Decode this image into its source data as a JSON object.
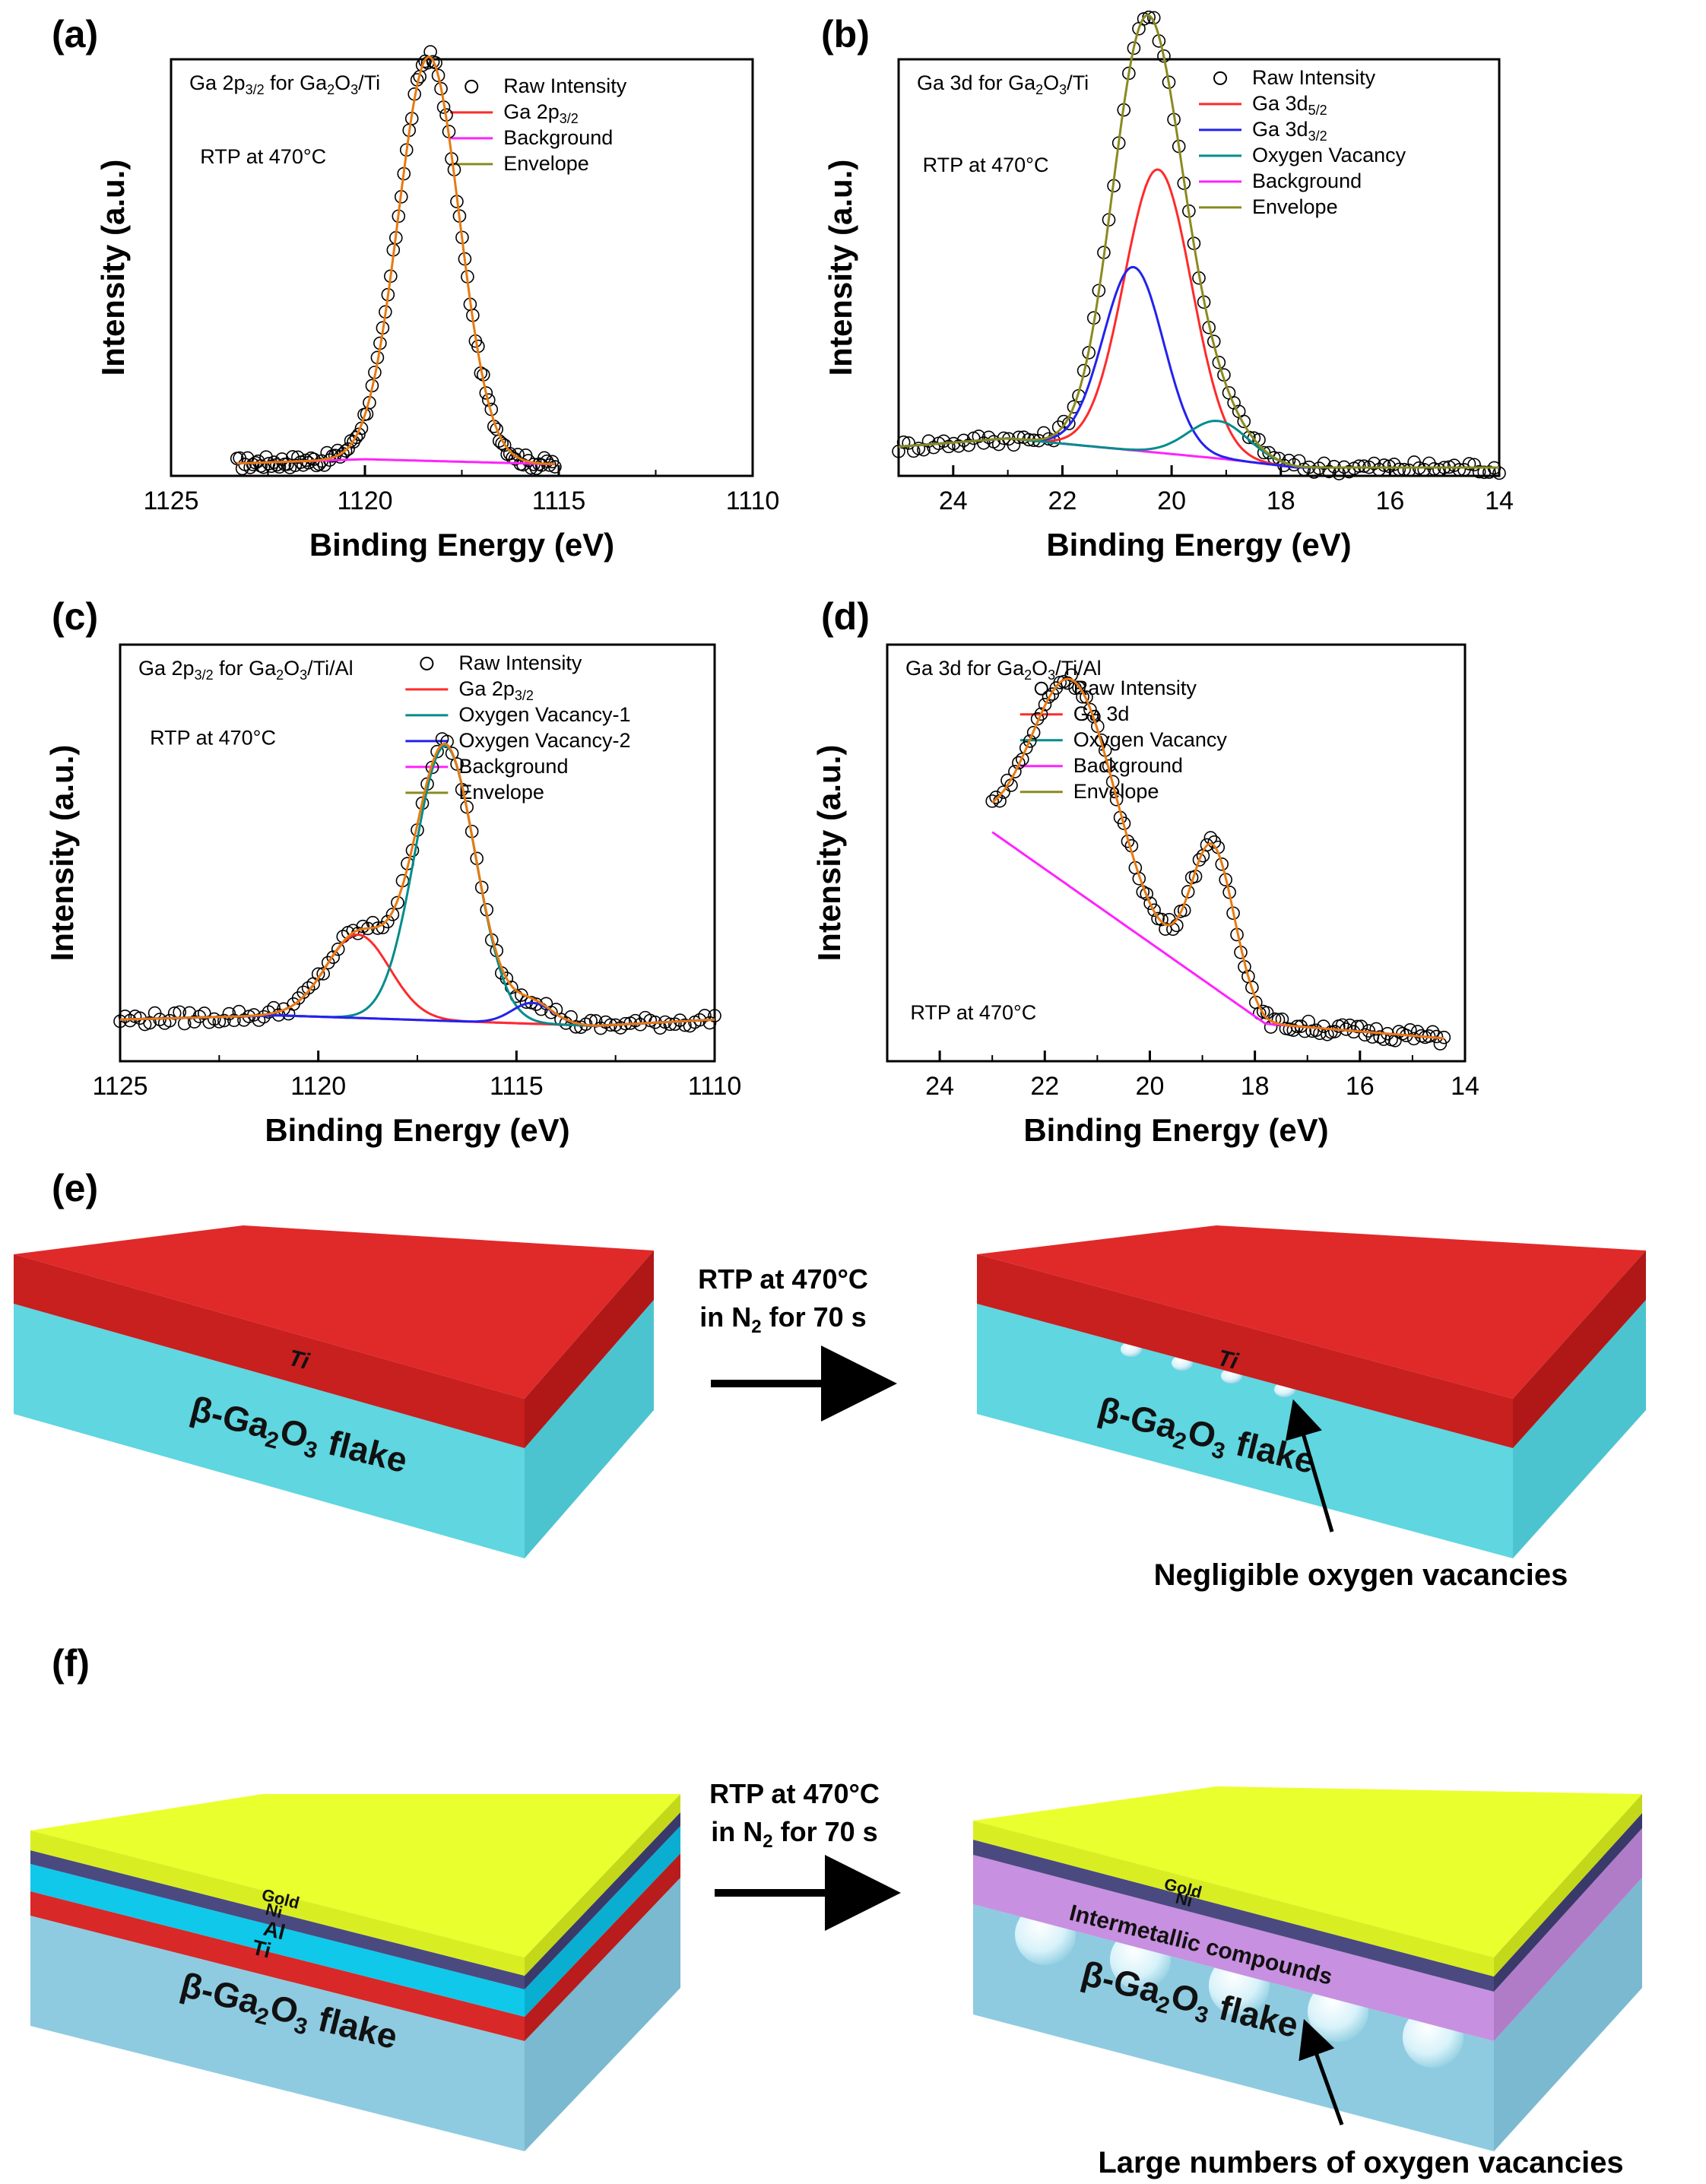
{
  "panel_labels": [
    "(a)",
    "(b)",
    "(c)",
    "(d)",
    "(e)",
    "(f)"
  ],
  "colors": {
    "raw": "#000000",
    "red": "#ff2a2a",
    "blue": "#2222ee",
    "teal": "#008c8c",
    "magenta": "#ff22ff",
    "olive": "#8a8a20",
    "fit_orange": "#e87a10",
    "ti_red": "#e02a2a",
    "ga2o3": "#66dde6",
    "ga2o3_f": "#9ed0e6",
    "gold": "#eaff2e",
    "ni": "#4a4a80",
    "al": "#10c8ea",
    "intermetallic": "#c890e0"
  },
  "chart_data": [
    {
      "type": "line",
      "panel": "(a)",
      "title": "Ga 2p3/2 for Ga2O3/Ti",
      "title_parts": {
        "pre": "Ga 2p",
        "sub": "3/2",
        "mid": " for Ga",
        "sub2": "2",
        "mid2": "O",
        "sub3": "3",
        "post": "/Ti"
      },
      "annotation": "RTP at 470°C",
      "xlabel": "Binding Energy (eV)",
      "ylabel": "Intensity (a.u.)",
      "xlim": [
        1125,
        1110
      ],
      "ylim": [
        0,
        1.0
      ],
      "xticks": [
        1125,
        1120,
        1115,
        1110
      ],
      "x_range": [
        1123.3,
        1115.1
      ],
      "legend": [
        {
          "label": "Raw Intensity",
          "sub": "",
          "style": "circle",
          "color": "#000000"
        },
        {
          "label": "Ga 2p",
          "sub": "3/2",
          "style": "line",
          "color": "#ff2a2a"
        },
        {
          "label": "Background",
          "sub": "",
          "style": "line",
          "color": "#ff22ff"
        },
        {
          "label": "Envelope",
          "sub": "",
          "style": "line",
          "color": "#8a8a20"
        }
      ],
      "background": {
        "x": [
          1123.3,
          1120,
          1115.1
        ],
        "y": [
          0.03,
          0.04,
          0.028
        ]
      },
      "peaks": [
        {
          "name": "Ga 2p3/2",
          "center": 1118.35,
          "height": 0.97,
          "fwhm": 1.85,
          "color": "#ff2a2a"
        }
      ],
      "envelope_color": "#e87a10",
      "draw_peak_components": false
    },
    {
      "type": "line",
      "panel": "(b)",
      "title": "Ga 3d for Ga2O3/Ti",
      "title_parts": {
        "pre": "Ga 3d",
        "sub": "",
        "mid": " for Ga",
        "sub2": "2",
        "mid2": "O",
        "sub3": "3",
        "post": "/Ti"
      },
      "annotation": "RTP at 470°C",
      "xlabel": "Binding Energy (eV)",
      "ylabel": "Intensity (a.u.)",
      "xlim": [
        25,
        14
      ],
      "ylim": [
        0,
        1.0
      ],
      "xticks": [
        24,
        22,
        20,
        18,
        16,
        14
      ],
      "x_range": [
        25,
        14
      ],
      "legend": [
        {
          "label": "Raw Intensity",
          "sub": "",
          "style": "circle",
          "color": "#000000"
        },
        {
          "label": "Ga 3d",
          "sub": "5/2",
          "style": "line",
          "color": "#ff2a2a"
        },
        {
          "label": "Ga 3d",
          "sub": "3/2",
          "style": "line",
          "color": "#2222ee"
        },
        {
          "label": "Oxygen Vacancy",
          "sub": "",
          "style": "line",
          "color": "#008c8c"
        },
        {
          "label": "Background",
          "sub": "",
          "style": "line",
          "color": "#ff22ff"
        },
        {
          "label": "Envelope",
          "sub": "",
          "style": "line",
          "color": "#8a8a20"
        }
      ],
      "background": {
        "x": [
          25,
          23,
          21,
          19,
          17.7,
          14
        ],
        "y": [
          0.07,
          0.09,
          0.065,
          0.04,
          0.02,
          0.02
        ]
      },
      "peaks": [
        {
          "name": "Ga 3d5/2",
          "center": 20.25,
          "height": 0.68,
          "fwhm": 1.45,
          "color": "#ff2a2a"
        },
        {
          "name": "Ga 3d3/2",
          "center": 20.7,
          "height": 0.44,
          "fwhm": 1.3,
          "color": "#2222ee"
        },
        {
          "name": "Oxygen Vacancy",
          "center": 19.15,
          "height": 0.09,
          "fwhm": 1.3,
          "color": "#008c8c"
        }
      ],
      "envelope_color": "#8a8a20",
      "draw_peak_components": true
    },
    {
      "type": "line",
      "panel": "(c)",
      "title": "Ga 2p3/2 for Ga2O3/Ti/Al",
      "title_parts": {
        "pre": "Ga 2p",
        "sub": "3/2",
        "mid": " for Ga",
        "sub2": "2",
        "mid2": "O",
        "sub3": "3",
        "post": "/Ti/Al"
      },
      "annotation": "RTP at 470°C",
      "xlabel": "Binding Energy (eV)",
      "ylabel": "Intensity (a.u.)",
      "xlim": [
        1125,
        1110
      ],
      "ylim": [
        0,
        1.0
      ],
      "xticks": [
        1125,
        1120,
        1115,
        1110
      ],
      "x_range": [
        1125,
        1110
      ],
      "legend": [
        {
          "label": "Raw Intensity",
          "sub": "",
          "style": "circle",
          "color": "#000000"
        },
        {
          "label": "Ga 2p",
          "sub": "3/2",
          "style": "line",
          "color": "#ff2a2a"
        },
        {
          "label": "Oxygen Vacancy-1",
          "sub": "",
          "style": "line",
          "color": "#008c8c"
        },
        {
          "label": "Oxygen Vacancy-2",
          "sub": "",
          "style": "line",
          "color": "#2222ee"
        },
        {
          "label": "Background",
          "sub": "",
          "style": "line",
          "color": "#ff22ff"
        },
        {
          "label": "Envelope",
          "sub": "",
          "style": "line",
          "color": "#8a8a20"
        }
      ],
      "background": {
        "x": [
          1125,
          1121,
          1113,
          1110
        ],
        "y": [
          0.1,
          0.11,
          0.085,
          0.1
        ]
      },
      "peaks": [
        {
          "name": "Ga 2p3/2",
          "center": 1119.0,
          "height": 0.2,
          "fwhm": 1.9,
          "color": "#ff2a2a"
        },
        {
          "name": "Oxygen Vacancy-1",
          "center": 1116.8,
          "height": 0.66,
          "fwhm": 1.8,
          "color": "#008c8c"
        },
        {
          "name": "Oxygen Vacancy-2",
          "center": 1114.6,
          "height": 0.05,
          "fwhm": 1.2,
          "color": "#2222ee"
        }
      ],
      "envelope_color": "#e87a10",
      "draw_peak_components": true
    },
    {
      "type": "line",
      "panel": "(d)",
      "title": "Ga 3d for Ga2O3/Ti/Al",
      "title_parts": {
        "pre": "Ga 3d",
        "sub": "",
        "mid": " for Ga",
        "sub2": "2",
        "mid2": "O",
        "sub3": "3",
        "post": "/Ti/Al"
      },
      "annotation": "RTP at 470°C",
      "xlabel": "Binding Energy (eV)",
      "ylabel": "Intensity (a.u.)",
      "xlim": [
        25,
        14
      ],
      "ylim": [
        0,
        1.0
      ],
      "xticks": [
        24,
        22,
        20,
        18,
        16,
        14
      ],
      "x_range": [
        23,
        14.4
      ],
      "legend": [
        {
          "label": "Raw Intensity",
          "sub": "",
          "style": "circle",
          "color": "#000000"
        },
        {
          "label": "Ga 3d",
          "sub": "",
          "style": "line",
          "color": "#ff2a2a"
        },
        {
          "label": "Oxygen Vacancy",
          "sub": "",
          "style": "line",
          "color": "#008c8c"
        },
        {
          "label": "Background",
          "sub": "",
          "style": "line",
          "color": "#ff22ff"
        },
        {
          "label": "Envelope",
          "sub": "",
          "style": "line",
          "color": "#8a8a20"
        }
      ],
      "background": {
        "x": [
          23,
          17.8,
          14.4
        ],
        "y": [
          0.55,
          0.09,
          0.055
        ]
      },
      "peaks": [
        {
          "name": "Ga 3d",
          "center": 21.45,
          "height": 0.5,
          "fwhm": 1.85,
          "color": "#ff2a2a"
        },
        {
          "name": "Oxygen Vacancy",
          "center": 18.8,
          "height": 0.34,
          "fwhm": 0.95,
          "color": "#008c8c"
        }
      ],
      "envelope_color": "#e87a10",
      "draw_peak_components": false
    }
  ],
  "schematic_e": {
    "left_labels": {
      "ti": "Ti",
      "flake_pre": "β-Ga",
      "flake_sub1": "2",
      "flake_mid": "O",
      "flake_sub2": "3",
      "flake_post": " flake"
    },
    "arrow_text_1": "RTP at 470°C",
    "arrow_text_2_pre": "in N",
    "arrow_text_2_sub": "2",
    "arrow_text_2_post": " for 70 s",
    "right_labels": {
      "ti": "Ti",
      "flake_pre": "β-Ga",
      "flake_sub1": "2",
      "flake_mid": "O",
      "flake_sub2": "3",
      "flake_post": " flake"
    },
    "callout": "Negligible oxygen vacancies"
  },
  "schematic_f": {
    "left_labels": {
      "gold": "Gold",
      "ni": "Ni",
      "al": "Al",
      "ti": "Ti",
      "flake_pre": "β-Ga",
      "flake_sub1": "2",
      "flake_mid": "O",
      "flake_sub2": "3",
      "flake_post": " flake"
    },
    "arrow_text_1": "RTP at 470°C",
    "arrow_text_2_pre": "in N",
    "arrow_text_2_sub": "2",
    "arrow_text_2_post": " for 70 s",
    "right_labels": {
      "gold": "Gold",
      "ni": "Ni",
      "intermetallic": "Intermetallic compounds",
      "flake_pre": "β-Ga",
      "flake_sub1": "2",
      "flake_mid": "O",
      "flake_sub2": "3",
      "flake_post": " flake"
    },
    "callout": "Large numbers of oxygen vacancies"
  }
}
